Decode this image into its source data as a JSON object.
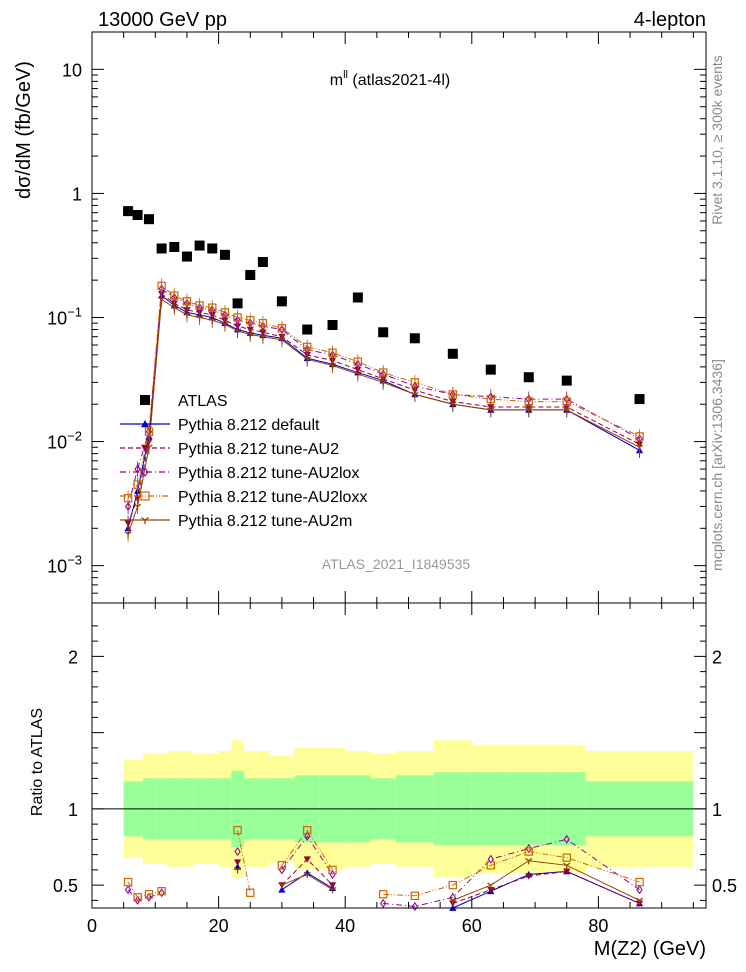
{
  "header": {
    "left": "13000 GeV pp",
    "right": "4-lepton"
  },
  "side_labels": {
    "rivet": "Rivet 3.1.10, ≥ 300k events",
    "mcplots": "mcplots.cern.ch [arXiv:1306.3436]"
  },
  "chart_data": {
    "type": "scatter",
    "title": "m^{ll} (atlas2021-4l)",
    "title_main": "m",
    "title_sup": "ll",
    "title_rest": " (atlas2021-4l)",
    "watermark": "ATLAS_2021_I1849535",
    "xlabel": "M(Z2) (GeV)",
    "ylabel_top": "dσ/dM (fb/GeV)",
    "ylabel_bottom": "Ratio to ATLAS",
    "xlim": [
      0,
      97
    ],
    "ylim_top": [
      0.0005,
      20
    ],
    "yscale_top": "log",
    "ylim_bottom": [
      0.35,
      2.35
    ],
    "x_ticks": [
      "0",
      "20",
      "40",
      "60",
      "80"
    ],
    "y_ticks_top": [
      "10^-3",
      "10^-2",
      "10^-1",
      "1",
      "10"
    ],
    "y_ticks_bottom": [
      "0.5",
      "1",
      "2"
    ],
    "legend_position": "left-middle",
    "bins": [
      [
        5,
        6.5
      ],
      [
        6.5,
        8
      ],
      [
        8,
        10
      ],
      [
        10,
        12
      ],
      [
        12,
        14
      ],
      [
        14,
        16
      ],
      [
        16,
        18
      ],
      [
        18,
        20
      ],
      [
        20,
        22
      ],
      [
        22,
        24
      ],
      [
        24,
        26
      ],
      [
        26,
        28
      ],
      [
        28,
        32
      ],
      [
        32,
        36
      ],
      [
        36,
        40
      ],
      [
        40,
        44
      ],
      [
        44,
        48
      ],
      [
        48,
        54
      ],
      [
        54,
        60
      ],
      [
        60,
        66
      ],
      [
        66,
        72
      ],
      [
        72,
        78
      ],
      [
        78,
        95
      ]
    ],
    "x": [
      5.7,
      7.2,
      9,
      11,
      13,
      15,
      17,
      19,
      21,
      23,
      25,
      27,
      30,
      34,
      38,
      42,
      46,
      51,
      57,
      63,
      69,
      75,
      86.5
    ],
    "series": [
      {
        "name": "ATLAS",
        "marker": "square-filled",
        "color": "#000000",
        "values": [
          0.72,
          0.67,
          0.62,
          0.36,
          0.37,
          0.31,
          0.38,
          0.36,
          0.32,
          0.13,
          0.22,
          0.28,
          0.135,
          0.08,
          0.087,
          0.145,
          0.076,
          0.068,
          0.051,
          0.038,
          0.033,
          0.031,
          0.022
        ]
      },
      {
        "name": "Pythia 8.212 default",
        "marker": "triangle-up-filled",
        "color": "#0000cc",
        "line": "solid",
        "values": [
          0.002,
          0.004,
          0.011,
          0.15,
          0.125,
          0.11,
          0.105,
          0.1,
          0.09,
          0.08,
          0.075,
          0.072,
          0.068,
          0.047,
          0.042,
          0.036,
          0.031,
          0.024,
          0.02,
          0.018,
          0.018,
          0.018,
          0.0085
        ]
      },
      {
        "name": "Pythia 8.212 tune-AU2",
        "marker": "triangle-down-filled",
        "color": "#990033",
        "line": "dashed",
        "values": [
          0.0022,
          0.0035,
          0.01,
          0.155,
          0.13,
          0.115,
          0.11,
          0.105,
          0.095,
          0.085,
          0.08,
          0.076,
          0.07,
          0.05,
          0.045,
          0.038,
          0.032,
          0.026,
          0.021,
          0.019,
          0.019,
          0.019,
          0.0095
        ]
      },
      {
        "name": "Pythia 8.212 tune-AU2lox",
        "marker": "diamond-open",
        "color": "#990099",
        "line": "dashdot",
        "values": [
          0.003,
          0.006,
          0.012,
          0.17,
          0.145,
          0.13,
          0.12,
          0.115,
          0.105,
          0.095,
          0.09,
          0.085,
          0.08,
          0.055,
          0.05,
          0.042,
          0.035,
          0.028,
          0.024,
          0.023,
          0.022,
          0.022,
          0.0105
        ]
      },
      {
        "name": "Pythia 8.212 tune-AU2loxx",
        "marker": "square-open",
        "color": "#cc6600",
        "line": "dashdotdot",
        "values": [
          0.0035,
          0.0045,
          0.012,
          0.18,
          0.15,
          0.135,
          0.125,
          0.12,
          0.11,
          0.1,
          0.095,
          0.09,
          0.082,
          0.058,
          0.052,
          0.044,
          0.036,
          0.03,
          0.024,
          0.022,
          0.021,
          0.021,
          0.011
        ]
      },
      {
        "name": "Pythia 8.212 tune-AU2m",
        "marker": "tri-down",
        "color": "#994400",
        "line": "solid",
        "values": [
          0.0018,
          0.003,
          0.009,
          0.14,
          0.12,
          0.105,
          0.1,
          0.095,
          0.088,
          0.078,
          0.073,
          0.07,
          0.066,
          0.046,
          0.041,
          0.035,
          0.03,
          0.024,
          0.02,
          0.018,
          0.018,
          0.018,
          0.009
        ]
      }
    ],
    "ratio_band_green": [
      0.18,
      0.18,
      0.2,
      0.2,
      0.2,
      0.2,
      0.2,
      0.2,
      0.2,
      0.25,
      0.2,
      0.2,
      0.2,
      0.22,
      0.22,
      0.22,
      0.2,
      0.22,
      0.24,
      0.24,
      0.24,
      0.24,
      0.18
    ],
    "ratio_band_yellow": [
      0.32,
      0.32,
      0.36,
      0.36,
      0.38,
      0.38,
      0.36,
      0.36,
      0.38,
      0.45,
      0.38,
      0.38,
      0.35,
      0.4,
      0.4,
      0.38,
      0.36,
      0.38,
      0.45,
      0.42,
      0.42,
      0.42,
      0.38
    ],
    "ratio_series": [
      {
        "values": [
          null,
          null,
          null,
          null,
          null,
          null,
          null,
          null,
          null,
          0.62,
          null,
          null,
          0.47,
          0.58,
          0.48,
          null,
          null,
          null,
          0.35,
          0.46,
          0.57,
          0.59,
          0.38
        ]
      },
      {
        "values": [
          null,
          null,
          null,
          null,
          null,
          null,
          null,
          null,
          null,
          0.65,
          null,
          null,
          0.5,
          0.67,
          0.5,
          null,
          null,
          null,
          0.38,
          0.47,
          0.56,
          0.59,
          0.38
        ]
      },
      {
        "values": [
          0.47,
          0.4,
          0.42,
          0.45,
          null,
          null,
          null,
          null,
          null,
          0.72,
          null,
          null,
          0.6,
          0.82,
          0.57,
          null,
          0.38,
          0.36,
          0.42,
          0.67,
          0.74,
          0.8,
          0.47
        ]
      },
      {
        "values": [
          0.52,
          0.42,
          0.44,
          0.46,
          null,
          null,
          null,
          null,
          null,
          0.86,
          0.45,
          null,
          0.63,
          0.86,
          0.6,
          null,
          0.44,
          0.43,
          0.5,
          0.63,
          0.72,
          0.68,
          0.52
        ]
      },
      {
        "values": [
          null,
          null,
          null,
          null,
          null,
          null,
          null,
          null,
          null,
          0.6,
          null,
          null,
          0.5,
          0.57,
          0.47,
          null,
          null,
          null,
          0.4,
          0.5,
          0.66,
          0.63,
          0.4
        ]
      }
    ]
  }
}
